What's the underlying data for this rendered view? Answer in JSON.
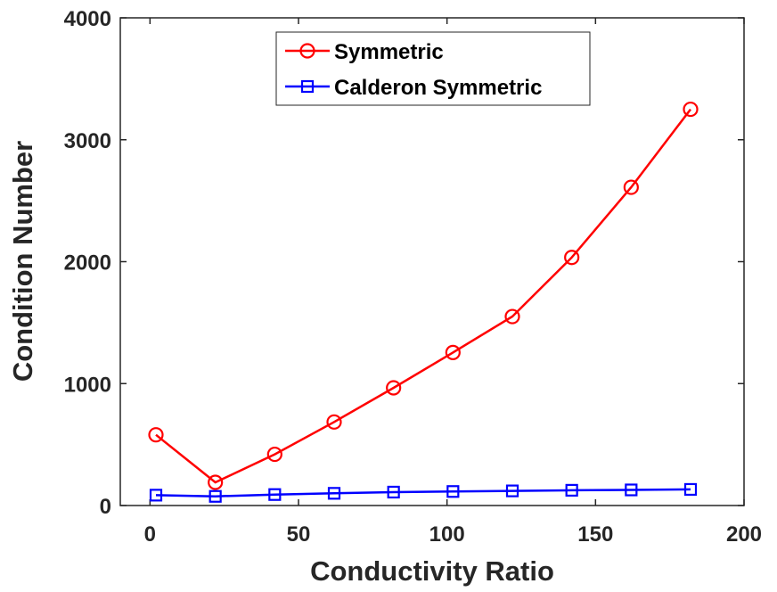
{
  "chart_data": {
    "type": "line",
    "xlabel": "Conductivity Ratio",
    "ylabel": "Condition Number",
    "xlim": [
      -10,
      200
    ],
    "ylim": [
      0,
      4000
    ],
    "xticks": [
      "0",
      "50",
      "100",
      "150",
      "200"
    ],
    "yticks": [
      "0",
      "1000",
      "2000",
      "3000",
      "4000"
    ],
    "grid": false,
    "legend_position": "top-center",
    "x": [
      2,
      22,
      42,
      62,
      82,
      102,
      122,
      142,
      162,
      182
    ],
    "series": [
      {
        "name": "Symmetric",
        "color": "#ff0000",
        "marker": "circle",
        "values": [
          580,
          190,
          420,
          685,
          965,
          1255,
          1550,
          2035,
          2610,
          3250
        ]
      },
      {
        "name": "Calderon Symmetric",
        "color": "#0000ff",
        "marker": "square",
        "values": [
          85,
          75,
          90,
          100,
          110,
          115,
          120,
          125,
          128,
          132
        ]
      }
    ]
  }
}
